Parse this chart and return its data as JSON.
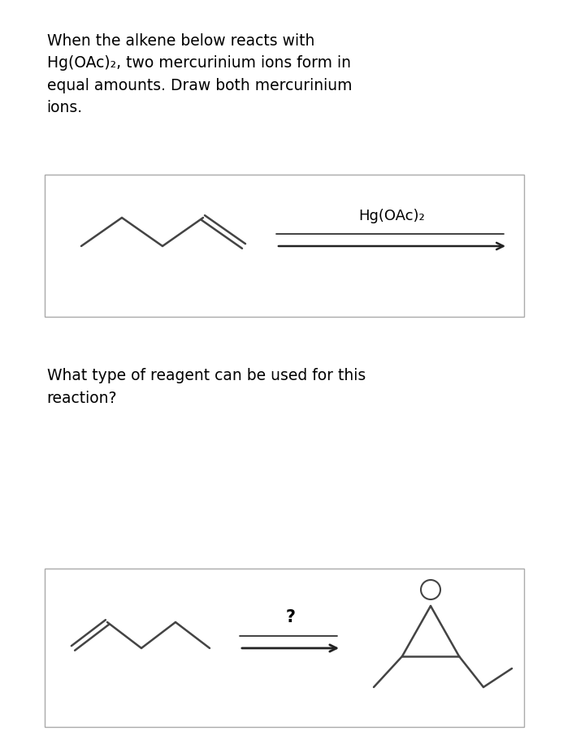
{
  "bg_color": "#ffffff",
  "text_color": "#000000",
  "title_text": "When the alkene below reacts with\nHg(OAc)₂, two mercurinium ions form in\nequal amounts. Draw both mercurinium\nions.",
  "question_text": "What type of reagent can be used for this\nreaction?",
  "reagent_label": "Hg(OAc)₂",
  "question_mark": "?",
  "line_color": "#555555",
  "arrow_color": "#222222",
  "mol_line_color": "#444444",
  "box_edge_color": "#aaaaaa"
}
